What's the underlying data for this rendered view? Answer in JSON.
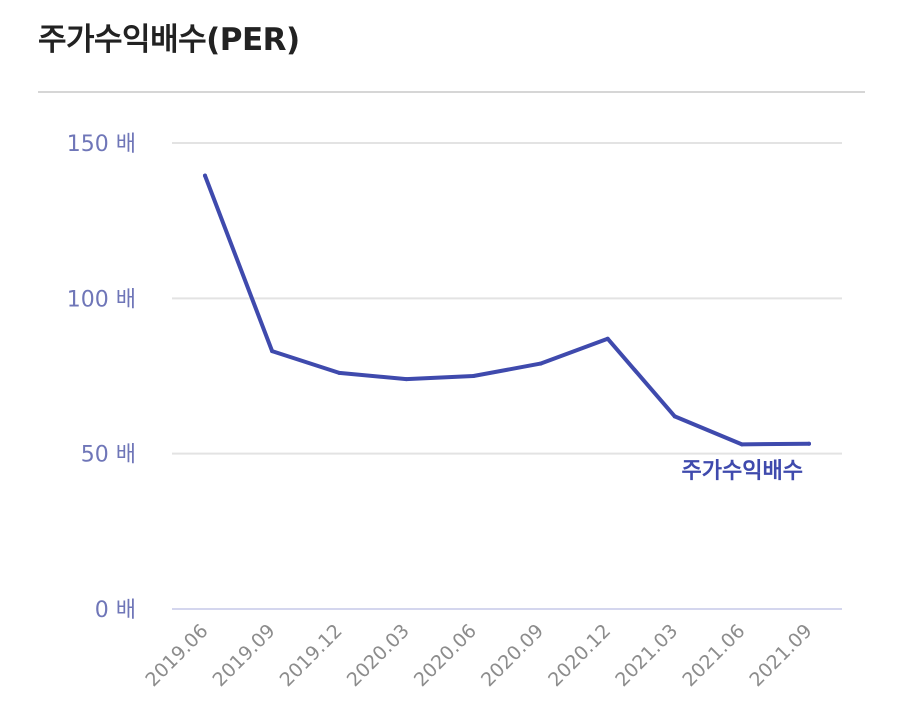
{
  "title": "주가수익배수(PER)",
  "colors": {
    "line": "#3f4aad",
    "axis_text": "#6f76b8",
    "x_text": "#8c8c8c",
    "grid": "#e3e3e3"
  },
  "chart_data": {
    "type": "line",
    "title": "주가수익배수(PER)",
    "xlabel": "",
    "ylabel": "",
    "categories": [
      "2019.06",
      "2019.09",
      "2019.12",
      "2020.03",
      "2020.06",
      "2020.09",
      "2020.12",
      "2021.03",
      "2021.06",
      "2021.09"
    ],
    "series": [
      {
        "name": "주가수익배수",
        "values": [
          139.5,
          83,
          76,
          74,
          75,
          79,
          87,
          62,
          53,
          53.2
        ]
      }
    ],
    "ylim": [
      0,
      150
    ],
    "yticks": [
      0,
      50,
      100,
      150
    ],
    "ytick_labels": [
      "0 배",
      "50 배",
      "100 배",
      "150 배"
    ],
    "grid": true,
    "legend": "none"
  }
}
